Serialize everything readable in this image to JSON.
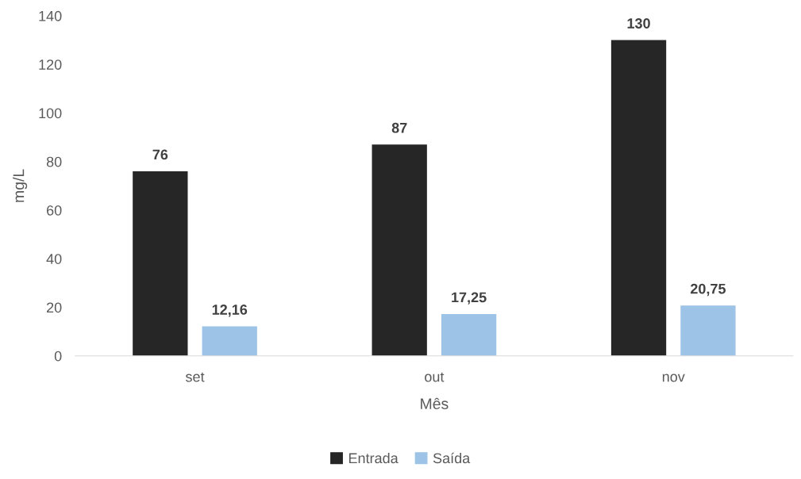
{
  "chart_data": {
    "type": "bar",
    "xlabel": "Mês",
    "ylabel": "mg/L",
    "categories": [
      "set",
      "out",
      "nov"
    ],
    "series": [
      {
        "name": "Entrada",
        "color": "#262626",
        "values": [
          76,
          87,
          130
        ],
        "value_labels": [
          "76",
          "87",
          "130"
        ]
      },
      {
        "name": "Saída",
        "color": "#9dc3e6",
        "values": [
          12.16,
          17.25,
          20.75
        ],
        "value_labels": [
          "12,16",
          "17,25",
          "20,75"
        ]
      }
    ],
    "ylim": [
      0,
      140
    ],
    "yticks": [
      0,
      20,
      40,
      60,
      80,
      100,
      120,
      140
    ],
    "grid": false,
    "legend": "bottom"
  }
}
